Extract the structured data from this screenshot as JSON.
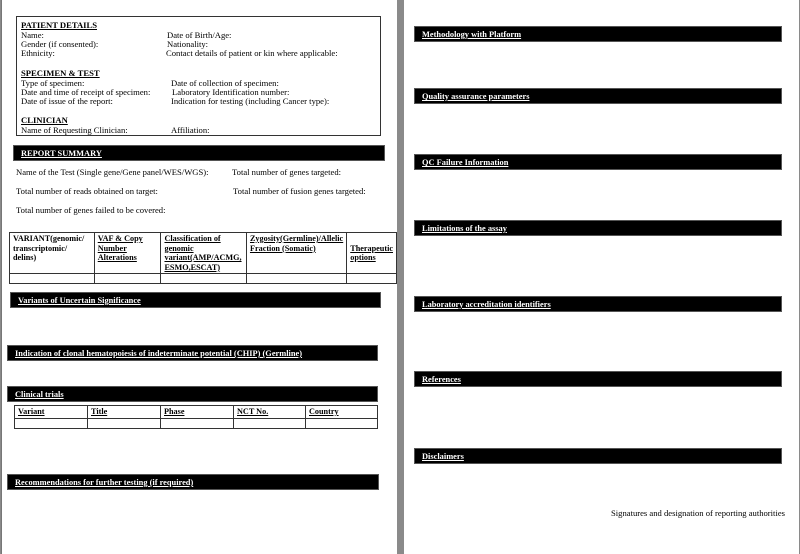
{
  "patient": {
    "heading": "PATIENT DETAILS",
    "name": "Name:",
    "gender": "Gender (if consented):",
    "ethnicity": "Ethnicity:",
    "dob": "Date of Birth/Age:",
    "nationality": "Nationality:",
    "contact": "Contact details of patient or kin where applicable:"
  },
  "specimen": {
    "heading": "SPECIMEN & TEST",
    "type": "Type of specimen:",
    "receipt": "Date and time of receipt of specimen:",
    "issue": "Date of issue of the report:",
    "collection": "Date of collection of specimen:",
    "labid": "Laboratory Identification number:",
    "indication": "Indication for testing (including Cancer type):"
  },
  "clinician": {
    "heading": "CLINICIAN",
    "name": "Name of Requesting Clinician:",
    "affiliation": "Affiliation:"
  },
  "summary": {
    "heading": "REPORT SUMMARY",
    "test": "Name of the Test (Single gene/Gene panel/WES/WGS):",
    "genes_targeted": "Total number of genes targeted:",
    "reads": "Total number of reads obtained on target:",
    "fusion": "Total number of fusion genes targeted:",
    "failed": "Total number of genes failed to be covered:"
  },
  "variant_table": {
    "headers": [
      "VARIANT(genomic/ transcriptomic/ delins)",
      "VAF & Copy Number Alterations",
      "Classification of genomic variant(AMP/ACMG, ESMO,ESCAT)",
      "Zygosity(Germline)/Allelic Fraction (Somatic)",
      "Therapeutic options"
    ]
  },
  "sections_left": {
    "vus": "Variants of Uncertain Significance",
    "chip": "Indication of clonal hematopoiesis of indeterminate potential (CHIP) (Germline)",
    "trials": "Clinical trials",
    "recommendations": "Recommendations for further testing (if required)"
  },
  "trials_table": {
    "headers": [
      "Variant",
      "Title",
      "Phase",
      "NCT No.",
      "Country"
    ]
  },
  "sections_right": {
    "methodology": "Methodology with Platform",
    "qa": "Quality assurance parameters",
    "qc": "QC Failure Information",
    "limitations": "Limitations of the assay",
    "accreditation": "Laboratory accreditation identifiers",
    "references": "References",
    "disclaimers": "Disclaimers"
  },
  "signatures": "Signatures and designation of reporting authorities"
}
